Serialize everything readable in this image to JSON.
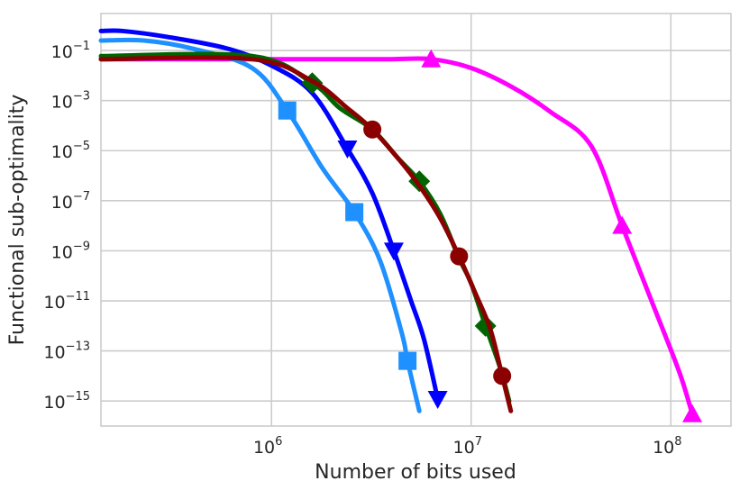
{
  "chart_data": {
    "type": "line",
    "title": "",
    "xlabel": "Number of bits used",
    "ylabel": "Functional sub-optimality",
    "xscale": "log",
    "yscale": "log",
    "xlim": [
      140000,
      200000000
    ],
    "ylim": [
      1e-16,
      3
    ],
    "grid": true,
    "x_ticks": [
      {
        "value": 1000000,
        "base": "10",
        "exp": "6"
      },
      {
        "value": 10000000,
        "base": "10",
        "exp": "7"
      },
      {
        "value": 100000000,
        "base": "10",
        "exp": "8"
      }
    ],
    "y_ticks": [
      {
        "value": 0.1,
        "base": "10",
        "exp": "−1"
      },
      {
        "value": 0.001,
        "base": "10",
        "exp": "−3"
      },
      {
        "value": 1e-05,
        "base": "10",
        "exp": "−5"
      },
      {
        "value": 1e-07,
        "base": "10",
        "exp": "−7"
      },
      {
        "value": 1e-09,
        "base": "10",
        "exp": "−9"
      },
      {
        "value": 1e-11,
        "base": "10",
        "exp": "−11"
      },
      {
        "value": 1e-13,
        "base": "10",
        "exp": "−13"
      },
      {
        "value": 1e-15,
        "base": "10",
        "exp": "−15"
      }
    ],
    "series": [
      {
        "color": "#ff00ff",
        "marker": "triangle-up",
        "points": [
          [
            140000,
            0.045
          ],
          [
            230000,
            0.045
          ],
          [
            400000,
            0.045
          ],
          [
            800000,
            0.045
          ],
          [
            2000000,
            0.045
          ],
          [
            4000000,
            0.045
          ],
          [
            6300000,
            0.045
          ],
          [
            10000000,
            0.02
          ],
          [
            16000000,
            0.0035
          ],
          [
            25000000,
            0.00035
          ],
          [
            40000000,
            1.5e-05
          ],
          [
            57000000,
            1e-08
          ],
          [
            80000000,
            1e-11
          ],
          [
            110000000,
            1.5e-14
          ],
          [
            128000000,
            3e-16
          ]
        ],
        "marker_points": [
          [
            6300000,
            0.045
          ],
          [
            57000000,
            1e-08
          ],
          [
            128000000,
            3e-16
          ]
        ]
      },
      {
        "color": "#1e90ff",
        "marker": "square",
        "points": [
          [
            140000,
            0.25
          ],
          [
            230000,
            0.25
          ],
          [
            400000,
            0.12
          ],
          [
            800000,
            0.02
          ],
          [
            1200000,
            0.0004
          ],
          [
            1800000,
            2e-06
          ],
          [
            2600000,
            3.5e-08
          ],
          [
            3500000,
            4e-10
          ],
          [
            4500000,
            5e-13
          ],
          [
            4800000,
            4e-14
          ],
          [
            5500000,
            4e-16
          ]
        ],
        "marker_points": [
          [
            1200000,
            0.0004
          ],
          [
            2600000,
            3.5e-08
          ],
          [
            4800000,
            4e-14
          ]
        ]
      },
      {
        "color": "#0000ff",
        "marker": "triangle-down",
        "points": [
          [
            140000,
            0.6
          ],
          [
            180000,
            0.6
          ],
          [
            300000,
            0.35
          ],
          [
            600000,
            0.12
          ],
          [
            1000000,
            0.025
          ],
          [
            1600000,
            0.002
          ],
          [
            2400000,
            1.2e-05
          ],
          [
            3200000,
            2e-07
          ],
          [
            4100000,
            1e-09
          ],
          [
            5000000,
            1e-11
          ],
          [
            5800000,
            3e-13
          ],
          [
            6800000,
            1.2e-15
          ]
        ],
        "marker_points": [
          [
            2400000,
            1.2e-05
          ],
          [
            4100000,
            1e-09
          ],
          [
            6800000,
            1.2e-15
          ]
        ]
      },
      {
        "color": "#006400",
        "marker": "diamond",
        "points": [
          [
            140000,
            0.06
          ],
          [
            800000,
            0.06
          ],
          [
            1600000,
            0.005
          ],
          [
            2200000,
            0.0005
          ],
          [
            3200000,
            7e-05
          ],
          [
            4300000,
            5e-06
          ],
          [
            5500000,
            6e-07
          ],
          [
            7000000,
            3e-08
          ],
          [
            8700000,
            5e-10
          ],
          [
            10000000,
            5e-11
          ],
          [
            11800000,
            1e-12
          ],
          [
            14000000,
            2e-14
          ],
          [
            15500000,
            1e-15
          ]
        ],
        "marker_points": [
          [
            1600000,
            0.005
          ],
          [
            5500000,
            6e-07
          ],
          [
            11800000,
            1e-12
          ]
        ]
      },
      {
        "color": "#8b0000",
        "marker": "circle",
        "points": [
          [
            140000,
            0.045
          ],
          [
            800000,
            0.045
          ],
          [
            1600000,
            0.006
          ],
          [
            2400000,
            0.0005
          ],
          [
            3200000,
            7e-05
          ],
          [
            4400000,
            4e-06
          ],
          [
            5500000,
            4e-07
          ],
          [
            7000000,
            2e-08
          ],
          [
            8700000,
            6e-10
          ],
          [
            10500000,
            2e-11
          ],
          [
            12500000,
            7e-13
          ],
          [
            14300000,
            1e-14
          ],
          [
            15800000,
            4e-16
          ]
        ],
        "marker_points": [
          [
            3200000,
            7e-05
          ],
          [
            8700000,
            6e-10
          ],
          [
            14300000,
            1e-14
          ]
        ]
      }
    ]
  }
}
